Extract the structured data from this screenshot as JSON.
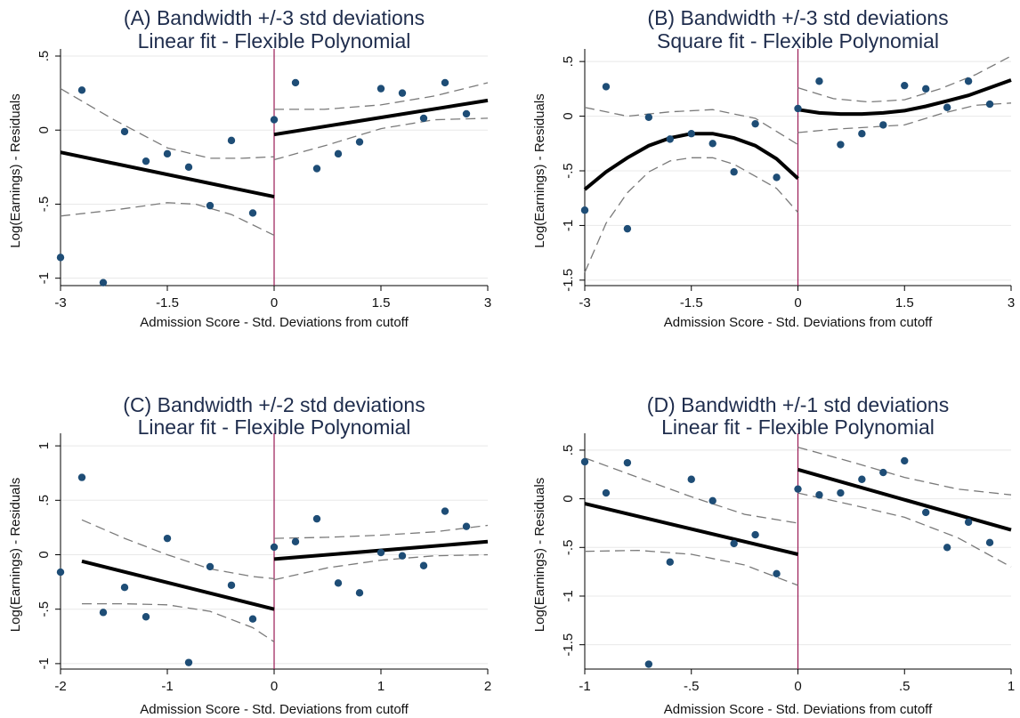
{
  "chart_data": [
    {
      "type": "scatter",
      "title": [
        "(A) Bandwidth +/-3 std deviations",
        "Linear fit - Flexible Polynomial"
      ],
      "xlabel": "Admission Score - Std. Deviations from cutoff",
      "ylabel": "Log(Earnings) - Residuals",
      "xlim": [
        -3,
        3
      ],
      "ylim": [
        -1.05,
        0.5
      ],
      "xticks": [
        -3,
        -1.5,
        0,
        1.5,
        3
      ],
      "xtick_labels": [
        "-3",
        "-1.5",
        "0",
        "1.5",
        "3"
      ],
      "yticks": [
        -1,
        -0.5,
        0,
        0.5
      ],
      "ytick_labels": [
        "-1",
        "-.5",
        "0",
        ".5"
      ],
      "grid": true,
      "cutoff": 0,
      "points": [
        [
          -3,
          -0.86
        ],
        [
          -2.7,
          0.27
        ],
        [
          -2.4,
          -1.03
        ],
        [
          -2.1,
          -0.01
        ],
        [
          -1.8,
          -0.21
        ],
        [
          -1.5,
          -0.16
        ],
        [
          -1.2,
          -0.25
        ],
        [
          -0.9,
          -0.51
        ],
        [
          -0.6,
          -0.07
        ],
        [
          -0.3,
          -0.56
        ],
        [
          0,
          0.07
        ],
        [
          0.3,
          0.32
        ],
        [
          0.6,
          -0.26
        ],
        [
          0.9,
          -0.16
        ],
        [
          1.2,
          -0.08
        ],
        [
          1.5,
          0.28
        ],
        [
          1.8,
          0.25
        ],
        [
          2.1,
          0.08
        ],
        [
          2.4,
          0.32
        ],
        [
          2.7,
          0.11
        ]
      ],
      "fit_left": [
        [
          -3,
          -0.15
        ],
        [
          0,
          -0.45
        ]
      ],
      "fit_right": [
        [
          0,
          -0.03
        ],
        [
          3,
          0.2
        ]
      ],
      "ci_left_upper": [
        [
          -3,
          0.28
        ],
        [
          -2.25,
          0.07
        ],
        [
          -1.5,
          -0.12
        ],
        [
          -0.9,
          -0.19
        ],
        [
          -0.45,
          -0.19
        ],
        [
          0,
          -0.18
        ]
      ],
      "ci_left_lower": [
        [
          -3,
          -0.58
        ],
        [
          -2.25,
          -0.54
        ],
        [
          -1.5,
          -0.49
        ],
        [
          -1.1,
          -0.5
        ],
        [
          -0.6,
          -0.57
        ],
        [
          0,
          -0.71
        ]
      ],
      "ci_right_upper": [
        [
          0,
          0.14
        ],
        [
          0.7,
          0.14
        ],
        [
          1.5,
          0.17
        ],
        [
          2.25,
          0.23
        ],
        [
          3,
          0.32
        ]
      ],
      "ci_right_lower": [
        [
          0,
          -0.2
        ],
        [
          0.75,
          -0.1
        ],
        [
          1.5,
          0.01
        ],
        [
          2.25,
          0.07
        ],
        [
          3,
          0.08
        ]
      ]
    },
    {
      "type": "scatter",
      "title": [
        "(B) Bandwidth +/-3 std deviations",
        "Square fit - Flexible Polynomial"
      ],
      "xlabel": "Admission Score - Std. Deviations from cutoff",
      "ylabel": "Log(Earnings) - Residuals",
      "xlim": [
        -3,
        3
      ],
      "ylim": [
        -1.55,
        0.55
      ],
      "xticks": [
        -3,
        -1.5,
        0,
        1.5,
        3
      ],
      "xtick_labels": [
        "-3",
        "-1.5",
        "0",
        "1.5",
        "3"
      ],
      "yticks": [
        -1.5,
        -1,
        -0.5,
        0,
        0.5
      ],
      "ytick_labels": [
        "-1.5",
        "-1",
        "-.5",
        "0",
        ".5"
      ],
      "grid": true,
      "cutoff": 0,
      "points": [
        [
          -3,
          -0.86
        ],
        [
          -2.7,
          0.27
        ],
        [
          -2.4,
          -1.03
        ],
        [
          -2.1,
          -0.01
        ],
        [
          -1.8,
          -0.21
        ],
        [
          -1.5,
          -0.16
        ],
        [
          -1.2,
          -0.25
        ],
        [
          -0.9,
          -0.51
        ],
        [
          -0.6,
          -0.07
        ],
        [
          -0.3,
          -0.56
        ],
        [
          0,
          0.07
        ],
        [
          0.3,
          0.32
        ],
        [
          0.6,
          -0.26
        ],
        [
          0.9,
          -0.16
        ],
        [
          1.2,
          -0.08
        ],
        [
          1.5,
          0.28
        ],
        [
          1.8,
          0.25
        ],
        [
          2.1,
          0.08
        ],
        [
          2.4,
          0.32
        ],
        [
          2.7,
          0.11
        ]
      ],
      "fit_left": [
        [
          -3,
          -0.67
        ],
        [
          -2.7,
          -0.51
        ],
        [
          -2.4,
          -0.38
        ],
        [
          -2.1,
          -0.27
        ],
        [
          -1.8,
          -0.2
        ],
        [
          -1.5,
          -0.16
        ],
        [
          -1.2,
          -0.16
        ],
        [
          -0.9,
          -0.2
        ],
        [
          -0.6,
          -0.27
        ],
        [
          -0.3,
          -0.39
        ],
        [
          0,
          -0.57
        ]
      ],
      "fit_right": [
        [
          0,
          0.06
        ],
        [
          0.3,
          0.03
        ],
        [
          0.6,
          0.02
        ],
        [
          0.9,
          0.02
        ],
        [
          1.2,
          0.03
        ],
        [
          1.5,
          0.05
        ],
        [
          1.8,
          0.09
        ],
        [
          2.1,
          0.14
        ],
        [
          2.4,
          0.19
        ],
        [
          2.7,
          0.26
        ],
        [
          3,
          0.33
        ]
      ],
      "ci_left_upper": [
        [
          -3,
          0.08
        ],
        [
          -2.4,
          0.0
        ],
        [
          -1.8,
          0.04
        ],
        [
          -1.2,
          0.06
        ],
        [
          -0.6,
          -0.02
        ],
        [
          0,
          -0.26
        ]
      ],
      "ci_left_lower": [
        [
          -3,
          -1.43
        ],
        [
          -2.7,
          -0.98
        ],
        [
          -2.4,
          -0.7
        ],
        [
          -2.1,
          -0.51
        ],
        [
          -1.8,
          -0.41
        ],
        [
          -1.5,
          -0.38
        ],
        [
          -1.2,
          -0.38
        ],
        [
          -0.9,
          -0.44
        ],
        [
          -0.6,
          -0.55
        ],
        [
          -0.3,
          -0.66
        ],
        [
          0,
          -0.88
        ]
      ],
      "ci_right_upper": [
        [
          0,
          0.26
        ],
        [
          0.5,
          0.16
        ],
        [
          1.0,
          0.13
        ],
        [
          1.5,
          0.15
        ],
        [
          2.0,
          0.25
        ],
        [
          2.5,
          0.38
        ],
        [
          3,
          0.55
        ]
      ],
      "ci_right_lower": [
        [
          0,
          -0.15
        ],
        [
          0.5,
          -0.12
        ],
        [
          1.0,
          -0.1
        ],
        [
          1.5,
          -0.08
        ],
        [
          2.0,
          0.02
        ],
        [
          2.5,
          0.1
        ],
        [
          3,
          0.12
        ]
      ]
    },
    {
      "type": "scatter",
      "title": [
        "(C) Bandwidth +/-2 std deviations",
        "Linear fit - Flexible Polynomial"
      ],
      "xlabel": "Admission Score - Std. Deviations from cutoff",
      "ylabel": "Log(Earnings) - Residuals",
      "xlim": [
        -2,
        2
      ],
      "ylim": [
        -1.05,
        1.05
      ],
      "xticks": [
        -2,
        -1,
        0,
        1,
        2
      ],
      "xtick_labels": [
        "-2",
        "-1",
        "0",
        "1",
        "2"
      ],
      "yticks": [
        -1,
        -0.5,
        0,
        0.5,
        1
      ],
      "ytick_labels": [
        "-1",
        "-.5",
        "0",
        ".5",
        "1"
      ],
      "grid": true,
      "cutoff": 0,
      "points": [
        [
          -2,
          -0.16
        ],
        [
          -1.8,
          0.71
        ],
        [
          -1.6,
          -0.53
        ],
        [
          -1.4,
          -0.3
        ],
        [
          -1.2,
          -0.57
        ],
        [
          -1.0,
          0.15
        ],
        [
          -0.8,
          -0.99
        ],
        [
          -0.6,
          -0.11
        ],
        [
          -0.4,
          -0.28
        ],
        [
          -0.2,
          -0.59
        ],
        [
          0,
          0.07
        ],
        [
          0.2,
          0.12
        ],
        [
          0.4,
          0.33
        ],
        [
          0.6,
          -0.26
        ],
        [
          0.8,
          -0.35
        ],
        [
          1.0,
          0.02
        ],
        [
          1.2,
          -0.01
        ],
        [
          1.4,
          -0.1
        ],
        [
          1.6,
          0.4
        ],
        [
          1.8,
          0.26
        ]
      ],
      "fit_left": [
        [
          -1.8,
          -0.06
        ],
        [
          0,
          -0.5
        ]
      ],
      "fit_right": [
        [
          0,
          -0.04
        ],
        [
          2,
          0.12
        ]
      ],
      "ci_left_upper": [
        [
          -1.8,
          0.32
        ],
        [
          -1.4,
          0.15
        ],
        [
          -1.0,
          0.0
        ],
        [
          -0.6,
          -0.13
        ],
        [
          -0.2,
          -0.2
        ],
        [
          0,
          -0.22
        ]
      ],
      "ci_left_lower": [
        [
          -1.8,
          -0.45
        ],
        [
          -1.4,
          -0.45
        ],
        [
          -1.0,
          -0.46
        ],
        [
          -0.6,
          -0.52
        ],
        [
          -0.2,
          -0.67
        ],
        [
          0,
          -0.8
        ]
      ],
      "ci_right_upper": [
        [
          0,
          0.15
        ],
        [
          0.5,
          0.16
        ],
        [
          1.0,
          0.18
        ],
        [
          1.5,
          0.21
        ],
        [
          2,
          0.27
        ]
      ],
      "ci_right_lower": [
        [
          0,
          -0.23
        ],
        [
          0.5,
          -0.12
        ],
        [
          1.0,
          -0.05
        ],
        [
          1.5,
          -0.01
        ],
        [
          2,
          0.0
        ]
      ]
    },
    {
      "type": "scatter",
      "title": [
        "(D) Bandwidth +/-1 std deviations",
        "Linear fit - Flexible Polynomial"
      ],
      "xlabel": "Admission Score - Std. Deviations from cutoff",
      "ylabel": "Log(Earnings) - Residuals",
      "xlim": [
        -1,
        1
      ],
      "ylim": [
        -1.75,
        0.6
      ],
      "xticks": [
        -1,
        -0.5,
        0,
        0.5,
        1
      ],
      "xtick_labels": [
        "-1",
        "-.5",
        "0",
        ".5",
        "1"
      ],
      "yticks": [
        -1.5,
        -1,
        -0.5,
        0,
        0.5
      ],
      "ytick_labels": [
        "-1.5",
        "-1",
        "-.5",
        "0",
        ".5"
      ],
      "grid": true,
      "cutoff": 0,
      "points": [
        [
          -1,
          0.38
        ],
        [
          -0.9,
          0.06
        ],
        [
          -0.8,
          0.37
        ],
        [
          -0.7,
          -1.7
        ],
        [
          -0.6,
          -0.65
        ],
        [
          -0.5,
          0.2
        ],
        [
          -0.4,
          -0.02
        ],
        [
          -0.3,
          -0.46
        ],
        [
          -0.2,
          -0.37
        ],
        [
          -0.1,
          -0.77
        ],
        [
          0,
          0.1
        ],
        [
          0.1,
          0.04
        ],
        [
          0.2,
          0.06
        ],
        [
          0.3,
          0.2
        ],
        [
          0.4,
          0.27
        ],
        [
          0.5,
          0.39
        ],
        [
          0.6,
          -0.14
        ],
        [
          0.7,
          -0.5
        ],
        [
          0.8,
          -0.24
        ],
        [
          0.9,
          -0.45
        ]
      ],
      "fit_left": [
        [
          -1,
          -0.05
        ],
        [
          0,
          -0.57
        ]
      ],
      "fit_right": [
        [
          0,
          0.3
        ],
        [
          1,
          -0.32
        ]
      ],
      "ci_left_upper": [
        [
          -1,
          0.42
        ],
        [
          -0.75,
          0.22
        ],
        [
          -0.5,
          0.02
        ],
        [
          -0.25,
          -0.16
        ],
        [
          0,
          -0.25
        ]
      ],
      "ci_left_lower": [
        [
          -1,
          -0.54
        ],
        [
          -0.75,
          -0.53
        ],
        [
          -0.5,
          -0.57
        ],
        [
          -0.25,
          -0.68
        ],
        [
          0,
          -0.89
        ]
      ],
      "ci_right_upper": [
        [
          0,
          0.53
        ],
        [
          0.25,
          0.38
        ],
        [
          0.5,
          0.22
        ],
        [
          0.75,
          0.1
        ],
        [
          1,
          0.04
        ]
      ],
      "ci_right_lower": [
        [
          0,
          0.06
        ],
        [
          0.25,
          -0.06
        ],
        [
          0.5,
          -0.19
        ],
        [
          0.75,
          -0.4
        ],
        [
          1,
          -0.7
        ]
      ]
    }
  ]
}
